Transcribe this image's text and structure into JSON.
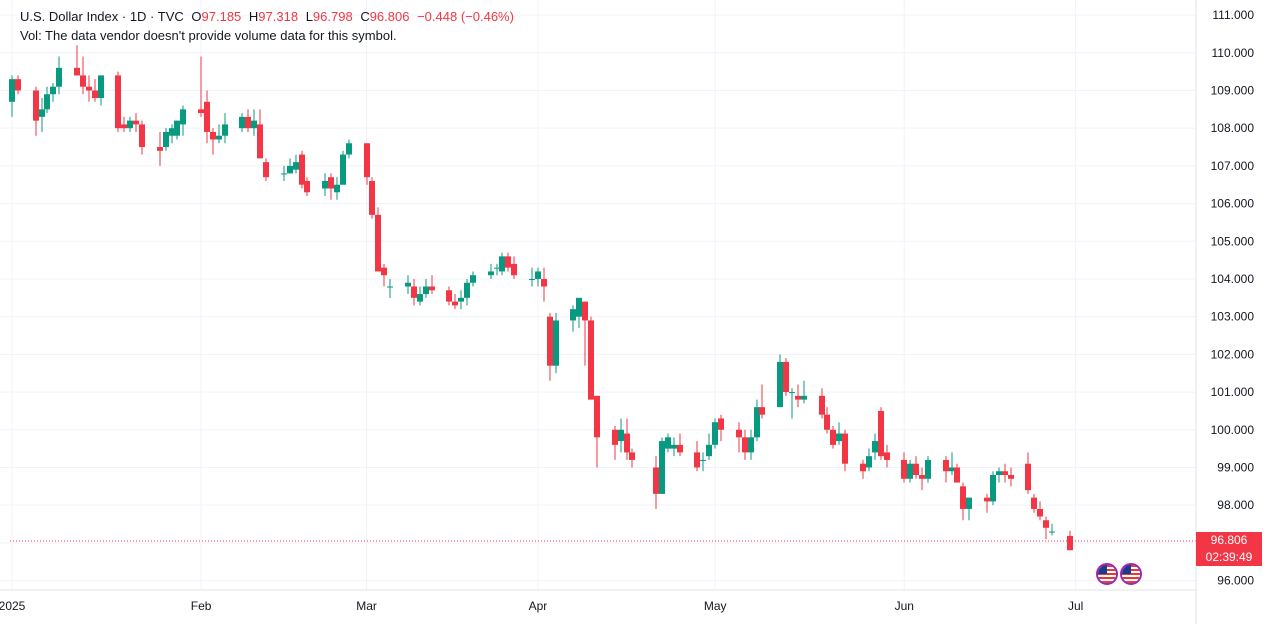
{
  "legend": {
    "symbol": "U.S. Dollar Index · 1D · TVC",
    "o_label": "O",
    "o": "97.185",
    "h_label": "H",
    "h": "97.318",
    "l_label": "L",
    "l": "96.798",
    "c_label": "C",
    "c": "96.806",
    "change": "−0.448 (−0.46%)"
  },
  "volume_note": "Vol: The data vendor doesn't provide volume data for this symbol.",
  "last_price": {
    "price": "96.806",
    "countdown": "02:39:49"
  },
  "colors": {
    "up": "#089981",
    "down": "#f23645",
    "grid": "#f0f3fa",
    "text": "#131722"
  },
  "icons": [
    "us-flag-icon",
    "us-flag-icon"
  ],
  "chart_data": {
    "type": "candlestick",
    "x_ticks": [
      {
        "date": "2025-01-02",
        "label": "2025"
      },
      {
        "date": "2025-02-03",
        "label": "Feb"
      },
      {
        "date": "2025-03-03",
        "label": "Mar"
      },
      {
        "date": "2025-04-01",
        "label": "Apr"
      },
      {
        "date": "2025-05-01",
        "label": "May"
      },
      {
        "date": "2025-06-02",
        "label": "Jun"
      },
      {
        "date": "2025-07-01",
        "label": "Jul"
      }
    ],
    "y_ticks": [
      "96.000",
      "97.000",
      "98.000",
      "99.000",
      "100.000",
      "101.000",
      "102.000",
      "103.000",
      "104.000",
      "105.000",
      "106.000",
      "107.000",
      "108.000",
      "109.000",
      "110.000",
      "111.000"
    ],
    "ylim": [
      95.75,
      111.4
    ],
    "xlim": [
      "2025-01-02",
      "2025-07-08"
    ],
    "grid": true,
    "candles": [
      [
        "2025-01-02",
        108.7,
        109.4,
        108.3,
        109.3
      ],
      [
        "2025-01-03",
        109.3,
        109.4,
        108.9,
        109.0
      ],
      [
        "2025-01-06",
        109.0,
        109.1,
        107.8,
        108.2
      ],
      [
        "2025-01-07",
        108.3,
        108.8,
        107.9,
        108.5
      ],
      [
        "2025-01-08",
        108.5,
        109.1,
        108.4,
        108.9
      ],
      [
        "2025-01-09",
        108.9,
        109.2,
        108.7,
        109.1
      ],
      [
        "2025-01-10",
        109.1,
        109.9,
        108.9,
        109.6
      ],
      [
        "2025-01-13",
        109.6,
        110.2,
        109.4,
        109.4
      ],
      [
        "2025-01-14",
        109.4,
        109.9,
        108.9,
        109.1
      ],
      [
        "2025-01-15",
        109.1,
        109.4,
        108.7,
        109.0
      ],
      [
        "2025-01-16",
        109.0,
        109.3,
        108.7,
        108.8
      ],
      [
        "2025-01-17",
        108.8,
        109.4,
        108.6,
        109.4
      ],
      [
        "2025-01-20",
        109.4,
        109.5,
        107.9,
        108.0
      ],
      [
        "2025-01-21",
        108.1,
        108.3,
        107.9,
        108.0
      ],
      [
        "2025-01-22",
        108.0,
        108.3,
        107.9,
        108.2
      ],
      [
        "2025-01-23",
        108.2,
        108.4,
        107.9,
        108.1
      ],
      [
        "2025-01-24",
        108.1,
        108.2,
        107.3,
        107.5
      ],
      [
        "2025-01-27",
        107.5,
        107.9,
        107.0,
        107.4
      ],
      [
        "2025-01-28",
        107.5,
        108.0,
        107.4,
        107.9
      ],
      [
        "2025-01-29",
        107.8,
        108.1,
        107.6,
        108.0
      ],
      [
        "2025-01-30",
        107.8,
        108.2,
        107.7,
        108.2
      ],
      [
        "2025-01-31",
        108.1,
        108.6,
        107.8,
        108.5
      ],
      [
        "2025-02-03",
        108.5,
        109.9,
        108.3,
        108.4
      ],
      [
        "2025-02-04",
        108.7,
        109.0,
        107.6,
        107.9
      ],
      [
        "2025-02-05",
        107.9,
        108.0,
        107.3,
        107.7
      ],
      [
        "2025-02-06",
        107.7,
        108.1,
        107.6,
        107.8
      ],
      [
        "2025-02-07",
        107.8,
        108.4,
        107.6,
        108.1
      ],
      [
        "2025-02-10",
        108.0,
        108.4,
        107.9,
        108.3
      ],
      [
        "2025-02-11",
        108.3,
        108.5,
        107.9,
        108.0
      ],
      [
        "2025-02-12",
        108.0,
        108.5,
        107.8,
        108.2
      ],
      [
        "2025-02-13",
        108.1,
        108.5,
        107.2,
        107.2
      ],
      [
        "2025-02-14",
        107.1,
        107.2,
        106.6,
        106.7
      ],
      [
        "2025-02-17",
        106.8,
        107.0,
        106.6,
        106.8
      ],
      [
        "2025-02-18",
        106.8,
        107.2,
        106.8,
        107.0
      ],
      [
        "2025-02-19",
        106.9,
        107.3,
        106.8,
        107.1
      ],
      [
        "2025-02-20",
        107.3,
        107.4,
        106.4,
        106.5
      ],
      [
        "2025-02-21",
        106.6,
        106.7,
        106.2,
        106.3
      ],
      [
        "2025-02-24",
        106.4,
        106.8,
        106.2,
        106.6
      ],
      [
        "2025-02-25",
        106.7,
        106.8,
        106.1,
        106.4
      ],
      [
        "2025-02-26",
        106.3,
        106.7,
        106.1,
        106.5
      ],
      [
        "2025-02-27",
        106.5,
        107.4,
        106.5,
        107.3
      ],
      [
        "2025-02-28",
        107.3,
        107.7,
        107.2,
        107.6
      ],
      [
        "2025-03-03",
        107.6,
        107.6,
        106.5,
        106.7
      ],
      [
        "2025-03-04",
        106.6,
        106.7,
        105.6,
        105.7
      ],
      [
        "2025-03-05",
        105.7,
        105.9,
        104.2,
        104.2
      ],
      [
        "2025-03-06",
        104.3,
        104.4,
        103.8,
        104.1
      ],
      [
        "2025-03-07",
        103.8,
        104.0,
        103.5,
        103.8
      ],
      [
        "2025-03-10",
        103.8,
        104.1,
        103.6,
        103.9
      ],
      [
        "2025-03-11",
        103.8,
        104.0,
        103.3,
        103.5
      ],
      [
        "2025-03-12",
        103.4,
        103.8,
        103.3,
        103.6
      ],
      [
        "2025-03-13",
        103.6,
        104.0,
        103.5,
        103.8
      ],
      [
        "2025-03-14",
        103.8,
        104.1,
        103.6,
        103.7
      ],
      [
        "2025-03-17",
        103.7,
        103.8,
        103.3,
        103.4
      ],
      [
        "2025-03-18",
        103.4,
        103.6,
        103.2,
        103.3
      ],
      [
        "2025-03-19",
        103.4,
        103.7,
        103.2,
        103.5
      ],
      [
        "2025-03-20",
        103.5,
        104.0,
        103.3,
        103.9
      ],
      [
        "2025-03-21",
        103.9,
        104.2,
        103.8,
        104.1
      ],
      [
        "2025-03-24",
        104.1,
        104.4,
        104.0,
        104.2
      ],
      [
        "2025-03-25",
        104.3,
        104.4,
        104.1,
        104.3
      ],
      [
        "2025-03-26",
        104.2,
        104.7,
        104.1,
        104.6
      ],
      [
        "2025-03-27",
        104.6,
        104.7,
        104.2,
        104.3
      ],
      [
        "2025-03-28",
        104.4,
        104.6,
        104.0,
        104.1
      ],
      [
        "2025-03-31",
        104.0,
        104.3,
        103.8,
        104.0
      ],
      [
        "2025-04-01",
        104.0,
        104.3,
        103.8,
        104.2
      ],
      [
        "2025-04-02",
        104.0,
        104.3,
        103.4,
        103.8
      ],
      [
        "2025-04-03",
        103.0,
        103.1,
        101.3,
        101.7
      ],
      [
        "2025-04-04",
        101.7,
        103.1,
        101.5,
        102.9
      ],
      [
        "2025-04-07",
        102.9,
        103.3,
        102.6,
        103.2
      ],
      [
        "2025-04-08",
        103.0,
        103.4,
        102.7,
        103.5
      ],
      [
        "2025-04-09",
        103.4,
        103.4,
        101.7,
        102.9
      ],
      [
        "2025-04-10",
        102.9,
        103.0,
        100.8,
        100.8
      ],
      [
        "2025-04-11",
        100.9,
        100.9,
        99.0,
        99.8
      ],
      [
        "2025-04-14",
        100.0,
        100.1,
        99.2,
        99.6
      ],
      [
        "2025-04-15",
        99.7,
        100.3,
        99.4,
        100.0
      ],
      [
        "2025-04-16",
        99.9,
        100.3,
        99.2,
        99.4
      ],
      [
        "2025-04-17",
        99.4,
        99.5,
        99.0,
        99.2
      ],
      [
        "2025-04-21",
        99.0,
        99.3,
        97.9,
        98.3
      ],
      [
        "2025-04-22",
        98.3,
        99.8,
        98.3,
        99.7
      ],
      [
        "2025-04-23",
        99.5,
        99.9,
        99.4,
        99.8
      ],
      [
        "2025-04-24",
        99.5,
        99.8,
        99.3,
        99.6
      ],
      [
        "2025-04-25",
        99.6,
        99.9,
        99.3,
        99.4
      ],
      [
        "2025-04-28",
        99.4,
        99.7,
        98.9,
        99.0
      ],
      [
        "2025-04-29",
        99.2,
        99.4,
        98.9,
        99.2
      ],
      [
        "2025-04-30",
        99.3,
        99.9,
        99.2,
        99.6
      ],
      [
        "2025-05-01",
        99.6,
        100.3,
        99.5,
        100.2
      ],
      [
        "2025-05-02",
        100.3,
        100.4,
        99.7,
        100.0
      ],
      [
        "2025-05-05",
        100.0,
        100.2,
        99.4,
        99.8
      ],
      [
        "2025-05-06",
        99.8,
        100.0,
        99.2,
        99.4
      ],
      [
        "2025-05-07",
        99.4,
        100.0,
        99.2,
        99.8
      ],
      [
        "2025-05-08",
        99.8,
        100.8,
        99.7,
        100.6
      ],
      [
        "2025-05-09",
        100.6,
        101.2,
        100.3,
        100.4
      ],
      [
        "2025-05-12",
        100.6,
        102.0,
        100.6,
        101.8
      ],
      [
        "2025-05-13",
        101.8,
        101.9,
        100.9,
        101.0
      ],
      [
        "2025-05-14",
        101.0,
        101.1,
        100.3,
        101.0
      ],
      [
        "2025-05-15",
        100.9,
        101.2,
        100.6,
        100.8
      ],
      [
        "2025-05-16",
        100.8,
        101.3,
        100.7,
        100.9
      ],
      [
        "2025-05-19",
        100.9,
        101.1,
        100.3,
        100.4
      ],
      [
        "2025-05-20",
        100.4,
        100.6,
        99.9,
        100.0
      ],
      [
        "2025-05-21",
        100.0,
        100.1,
        99.5,
        99.6
      ],
      [
        "2025-05-22",
        99.7,
        100.2,
        99.6,
        99.9
      ],
      [
        "2025-05-23",
        99.9,
        100.0,
        98.9,
        99.1
      ],
      [
        "2025-05-26",
        99.1,
        99.2,
        98.7,
        98.9
      ],
      [
        "2025-05-27",
        99.0,
        99.5,
        98.9,
        99.3
      ],
      [
        "2025-05-28",
        99.4,
        99.9,
        99.2,
        99.7
      ],
      [
        "2025-05-29",
        100.5,
        100.6,
        99.2,
        99.3
      ],
      [
        "2025-05-30",
        99.4,
        99.6,
        99.0,
        99.2
      ],
      [
        "2025-06-02",
        99.2,
        99.4,
        98.6,
        98.7
      ],
      [
        "2025-06-03",
        98.7,
        99.2,
        98.6,
        99.1
      ],
      [
        "2025-06-04",
        99.1,
        99.3,
        98.7,
        98.8
      ],
      [
        "2025-06-05",
        98.8,
        99.0,
        98.4,
        98.7
      ],
      [
        "2025-06-06",
        98.7,
        99.3,
        98.6,
        99.2
      ],
      [
        "2025-06-09",
        99.2,
        99.3,
        98.6,
        98.9
      ],
      [
        "2025-06-10",
        98.9,
        99.4,
        98.8,
        99.0
      ],
      [
        "2025-06-11",
        99.0,
        99.1,
        98.6,
        98.6
      ],
      [
        "2025-06-12",
        98.5,
        98.6,
        97.6,
        97.9
      ],
      [
        "2025-06-13",
        97.9,
        98.2,
        97.6,
        98.2
      ],
      [
        "2025-06-16",
        98.2,
        98.3,
        97.8,
        98.1
      ],
      [
        "2025-06-17",
        98.1,
        98.9,
        98.0,
        98.8
      ],
      [
        "2025-06-18",
        98.8,
        99.0,
        98.6,
        98.9
      ],
      [
        "2025-06-19",
        98.9,
        99.1,
        98.6,
        98.8
      ],
      [
        "2025-06-20",
        98.8,
        99.0,
        98.5,
        98.7
      ],
      [
        "2025-06-23",
        99.1,
        99.4,
        98.3,
        98.4
      ],
      [
        "2025-06-24",
        98.2,
        98.3,
        97.8,
        97.9
      ],
      [
        "2025-06-25",
        97.9,
        98.1,
        97.6,
        97.7
      ],
      [
        "2025-06-26",
        97.6,
        97.7,
        97.1,
        97.4
      ],
      [
        "2025-06-27",
        97.3,
        97.5,
        97.2,
        97.3
      ],
      [
        "2025-06-30",
        97.185,
        97.318,
        96.798,
        96.806
      ]
    ]
  }
}
